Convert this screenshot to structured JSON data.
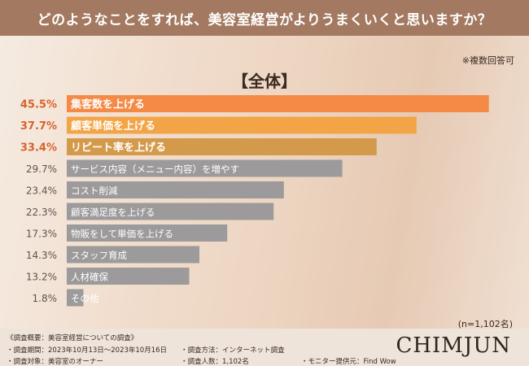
{
  "header": {
    "question": "どのようなことをすれば、美容室経営がよりうまくいくと思いますか？"
  },
  "note": "※複数回答可",
  "chart_data": {
    "type": "bar",
    "orientation": "horizontal",
    "title": "【全体】",
    "categories": [
      "集客数を上げる",
      "顧客単価を上げる",
      "リピート率を上げる",
      "サービス内容（メニュー内容）を増やす",
      "コスト削減",
      "顧客満足度を上げる",
      "物販をして単価を上げる",
      "スタッフ育成",
      "人材確保",
      "その他"
    ],
    "values": [
      45.5,
      37.7,
      33.4,
      29.7,
      23.4,
      22.3,
      17.3,
      14.3,
      13.2,
      1.8
    ],
    "value_labels": [
      "45.5%",
      "37.7%",
      "33.4%",
      "29.7%",
      "23.4%",
      "22.3%",
      "17.3%",
      "14.3%",
      "13.2%",
      "1.8%"
    ],
    "colors": [
      "#f48a46",
      "#f3a446",
      "#d49a4c",
      "#9c9a9a",
      "#9c9a9a",
      "#9c9a9a",
      "#9c9a9a",
      "#9c9a9a",
      "#9c9a9a",
      "#9c9a9a"
    ],
    "label_colors": [
      "#d9622a",
      "#d9622a",
      "#d9622a",
      "#5d544f",
      "#5d544f",
      "#5d544f",
      "#5d544f",
      "#5d544f",
      "#5d544f",
      "#5d544f"
    ],
    "xlim": [
      0,
      50
    ],
    "grid": false
  },
  "n_label": "(n=1,102名)",
  "footer": {
    "summary": "《調査概要：美容室経営についての調査》",
    "period": "・調査期間：2023年10月13日〜2023年10月16日",
    "target": "・調査対象：美容室のオーナー",
    "method": "・調査方法：インターネット調査",
    "count": "・調査人数：1,102名",
    "provider": "・モニター提供元：Find Wow"
  },
  "logo": "CHIMJUN"
}
